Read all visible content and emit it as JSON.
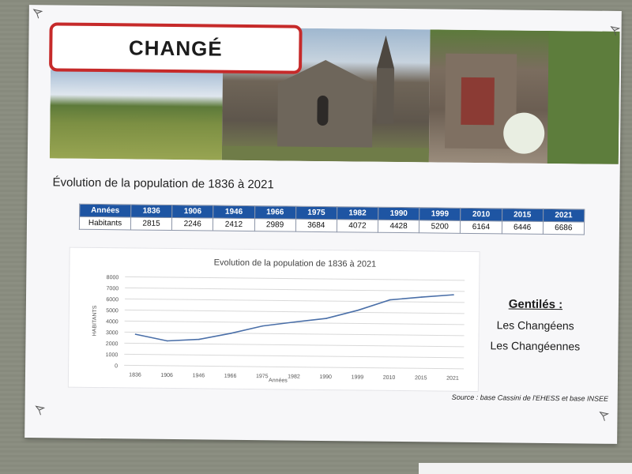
{
  "poster": {
    "title": "CHANGÉ",
    "subtitle": "Évolution de la population de 1836 à 2021",
    "table": {
      "row1_label": "Années",
      "row2_label": "Habitants",
      "years": [
        "1836",
        "1906",
        "1946",
        "1966",
        "1975",
        "1982",
        "1990",
        "1999",
        "2010",
        "2015",
        "2021"
      ],
      "inhabitants": [
        "2815",
        "2246",
        "2412",
        "2989",
        "3684",
        "4072",
        "4428",
        "5200",
        "6164",
        "6446",
        "6686"
      ]
    },
    "gentiles": {
      "title": "Gentilés :",
      "masculine": "Les Changéens",
      "feminine": "Les Changéennes"
    },
    "source": "Source : base Cassini de l'EHESS et base INSEE",
    "colors": {
      "title_border": "#c62a2a",
      "table_header": "#1e55a3",
      "line": "#4a6fa8"
    }
  },
  "chart_data": {
    "type": "line",
    "title": "Evolution de la population de 1836 à 2021",
    "xlabel": "Années",
    "ylabel": "HABITANTS",
    "categories": [
      "1836",
      "1906",
      "1946",
      "1966",
      "1975",
      "1982",
      "1990",
      "1999",
      "2010",
      "2015",
      "2021"
    ],
    "x_tick_labels": [
      "1836",
      "1906",
      "1946",
      "1966",
      "1975",
      "1982",
      "1990",
      "1999",
      "2010",
      "2015",
      "2021"
    ],
    "values": [
      2815,
      2246,
      2412,
      2989,
      3684,
      4072,
      4428,
      5200,
      6164,
      6446,
      6686
    ],
    "ylim": [
      0,
      8000
    ],
    "y_ticks": [
      0,
      1000,
      2000,
      3000,
      4000,
      5000,
      6000,
      7000,
      8000
    ],
    "grid": true,
    "legend": "none"
  }
}
